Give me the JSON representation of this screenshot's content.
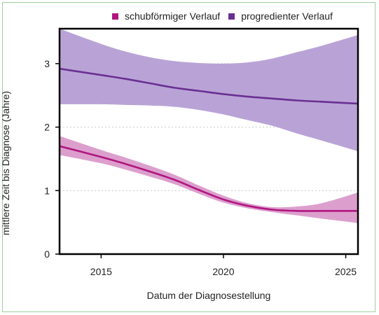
{
  "chart_data": {
    "type": "line",
    "title": "",
    "xlabel": "Datum der Diagnosestellung",
    "ylabel": "mittlere Zeit bis Diagnose (Jahre)",
    "xlim": [
      2013.3,
      2025.5
    ],
    "ylim": [
      0,
      3.55
    ],
    "x_ticks": [
      2015,
      2020,
      2025
    ],
    "y_ticks": [
      0,
      1,
      2,
      3
    ],
    "grid": "horizontal-dotted",
    "legend_position": "top",
    "series": [
      {
        "name": "schubförmiger Verlauf",
        "color": "#b0157f",
        "band_color": "#dc9fcd",
        "x": [
          2013.3,
          2015,
          2016,
          2017,
          2018,
          2019,
          2020,
          2021,
          2022,
          2023,
          2024,
          2025.5
        ],
        "values": [
          1.7,
          1.53,
          1.42,
          1.3,
          1.17,
          1.01,
          0.86,
          0.76,
          0.7,
          0.68,
          0.68,
          0.68
        ],
        "lower": [
          1.56,
          1.43,
          1.33,
          1.22,
          1.1,
          0.95,
          0.81,
          0.72,
          0.66,
          0.61,
          0.56,
          0.49
        ],
        "upper": [
          1.86,
          1.64,
          1.52,
          1.39,
          1.25,
          1.08,
          0.92,
          0.8,
          0.74,
          0.75,
          0.8,
          0.97
        ]
      },
      {
        "name": "progredienter Verlauf",
        "color": "#6a2f93",
        "band_color": "#b9a3d6",
        "x": [
          2013.3,
          2015,
          2016,
          2017,
          2018,
          2019,
          2020,
          2021,
          2022,
          2023,
          2024,
          2025.5
        ],
        "values": [
          2.92,
          2.82,
          2.76,
          2.69,
          2.62,
          2.57,
          2.52,
          2.48,
          2.45,
          2.42,
          2.4,
          2.37
        ],
        "lower": [
          2.36,
          2.36,
          2.35,
          2.34,
          2.32,
          2.27,
          2.2,
          2.11,
          2.02,
          1.9,
          1.79,
          1.62
        ],
        "upper": [
          3.55,
          3.31,
          3.19,
          3.1,
          3.04,
          3.01,
          3.0,
          3.02,
          3.08,
          3.18,
          3.28,
          3.45
        ]
      }
    ]
  }
}
